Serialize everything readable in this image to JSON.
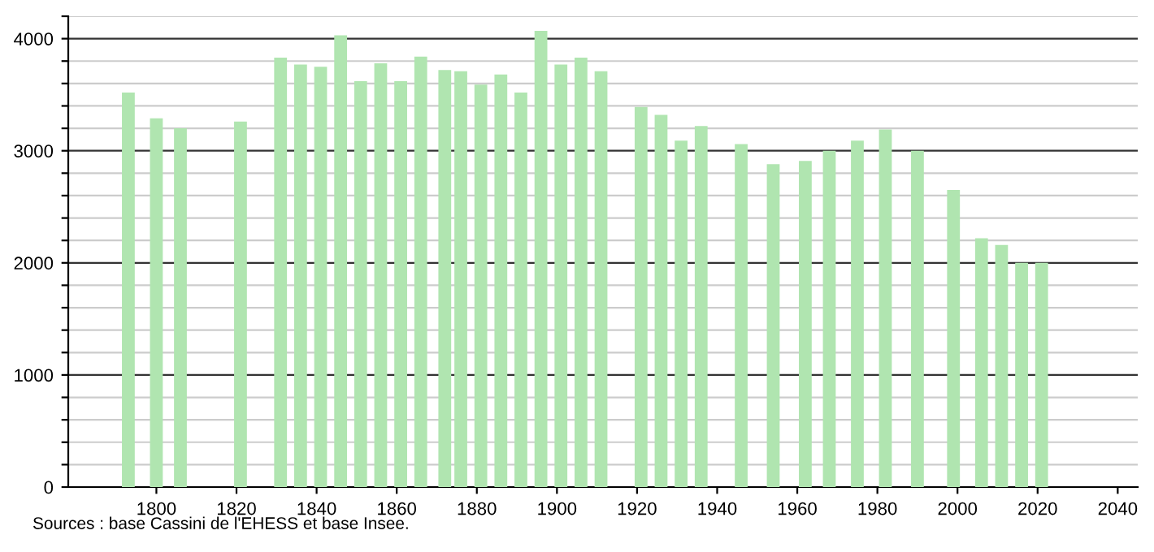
{
  "chart_data": {
    "type": "bar",
    "color": "#b0e5b0",
    "x": [
      1793,
      1800,
      1806,
      1821,
      1831,
      1836,
      1841,
      1846,
      1851,
      1856,
      1861,
      1866,
      1872,
      1876,
      1881,
      1886,
      1891,
      1896,
      1901,
      1906,
      1911,
      1921,
      1926,
      1931,
      1936,
      1946,
      1954,
      1962,
      1968,
      1975,
      1982,
      1990,
      1999,
      2006,
      2011,
      2016,
      2021
    ],
    "values": [
      3520,
      3290,
      3200,
      3260,
      3830,
      3770,
      3750,
      4030,
      3620,
      3780,
      3620,
      3840,
      3720,
      3710,
      3590,
      3680,
      3520,
      4070,
      3770,
      3830,
      3710,
      3390,
      3320,
      3090,
      3220,
      3060,
      2880,
      2910,
      3000,
      3090,
      3190,
      3000,
      2650,
      2220,
      2160,
      2000,
      2000
    ],
    "xlim": [
      1778,
      2045
    ],
    "ylim": [
      0,
      4200
    ],
    "xticks": [
      1800,
      1820,
      1840,
      1860,
      1880,
      1900,
      1920,
      1940,
      1960,
      1980,
      2000,
      2020,
      2040
    ],
    "yticks": [
      0,
      {
        "value": 200,
        "label": null
      },
      {
        "value": 400,
        "label": null
      },
      {
        "value": 600,
        "label": null
      },
      {
        "value": 800,
        "label": null
      },
      1000,
      {
        "value": 1200,
        "label": null
      },
      {
        "value": 1400,
        "label": null
      },
      {
        "value": 1600,
        "label": null
      },
      {
        "value": 1800,
        "label": null
      },
      2000,
      {
        "value": 2200,
        "label": null
      },
      {
        "value": 2400,
        "label": null
      },
      {
        "value": 2600,
        "label": null
      },
      {
        "value": 2800,
        "label": null
      },
      3000,
      {
        "value": 3200,
        "label": null
      },
      {
        "value": 3400,
        "label": null
      },
      {
        "value": 3600,
        "label": null
      },
      {
        "value": 3800,
        "label": null
      },
      4000,
      {
        "value": 4200,
        "label": null
      }
    ],
    "grid": "y",
    "annotations": [
      "Sources : base Cassini de l'EHESS et base Insee."
    ]
  }
}
